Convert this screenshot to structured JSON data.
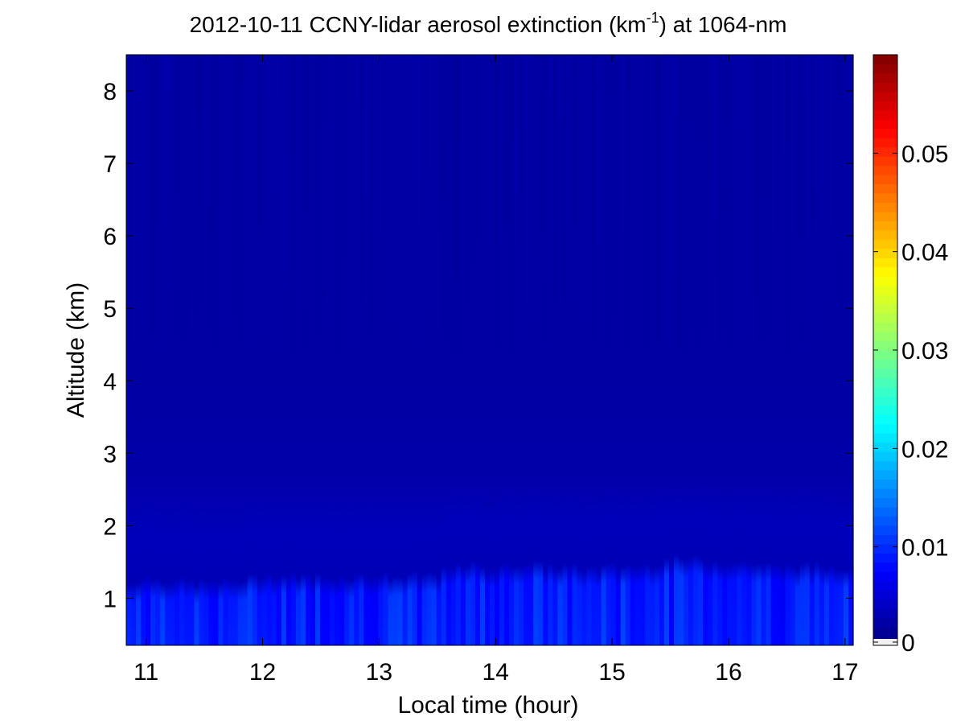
{
  "chart_data": {
    "type": "heatmap",
    "title_main": "2012-10-11 CCNY-lidar aerosol extinction (km",
    "title_sup": "-1",
    "title_end": ") at 1064-nm",
    "xlabel": "Local time (hour)",
    "ylabel": "Altitude (km)",
    "xlim": [
      10.83,
      17.07
    ],
    "ylim": [
      0.35,
      8.5
    ],
    "xticks": [
      11,
      12,
      13,
      14,
      15,
      16,
      17
    ],
    "yticks": [
      1,
      2,
      3,
      4,
      5,
      6,
      7,
      8
    ],
    "colorbar": {
      "colormap": "jet",
      "clim": [
        0,
        0.06
      ],
      "ticks": [
        0,
        0.01,
        0.02,
        0.03,
        0.04,
        0.05
      ],
      "tick_labels": [
        "0",
        "0.01",
        "0.02",
        "0.03",
        "0.04",
        "0.05"
      ]
    },
    "boundary_layer_top_km": [
      [
        10.85,
        1.2
      ],
      [
        11.0,
        1.3
      ],
      [
        11.2,
        1.25
      ],
      [
        11.5,
        1.22
      ],
      [
        11.8,
        1.25
      ],
      [
        12.0,
        1.33
      ],
      [
        12.3,
        1.32
      ],
      [
        12.6,
        1.3
      ],
      [
        12.9,
        1.33
      ],
      [
        13.2,
        1.3
      ],
      [
        13.5,
        1.35
      ],
      [
        13.75,
        1.48
      ],
      [
        14.0,
        1.42
      ],
      [
        14.2,
        1.5
      ],
      [
        14.5,
        1.45
      ],
      [
        14.8,
        1.42
      ],
      [
        15.0,
        1.45
      ],
      [
        15.3,
        1.46
      ],
      [
        15.5,
        1.55
      ],
      [
        15.7,
        1.55
      ],
      [
        15.9,
        1.52
      ],
      [
        16.2,
        1.5
      ],
      [
        16.4,
        1.45
      ],
      [
        16.6,
        1.45
      ],
      [
        16.8,
        1.45
      ],
      [
        17.05,
        1.45
      ]
    ],
    "background_extinction_km-1": 0.002,
    "boundary_layer_extinction_km-1": 0.009,
    "residual_layer_extinction_km-1": 0.0035
  }
}
